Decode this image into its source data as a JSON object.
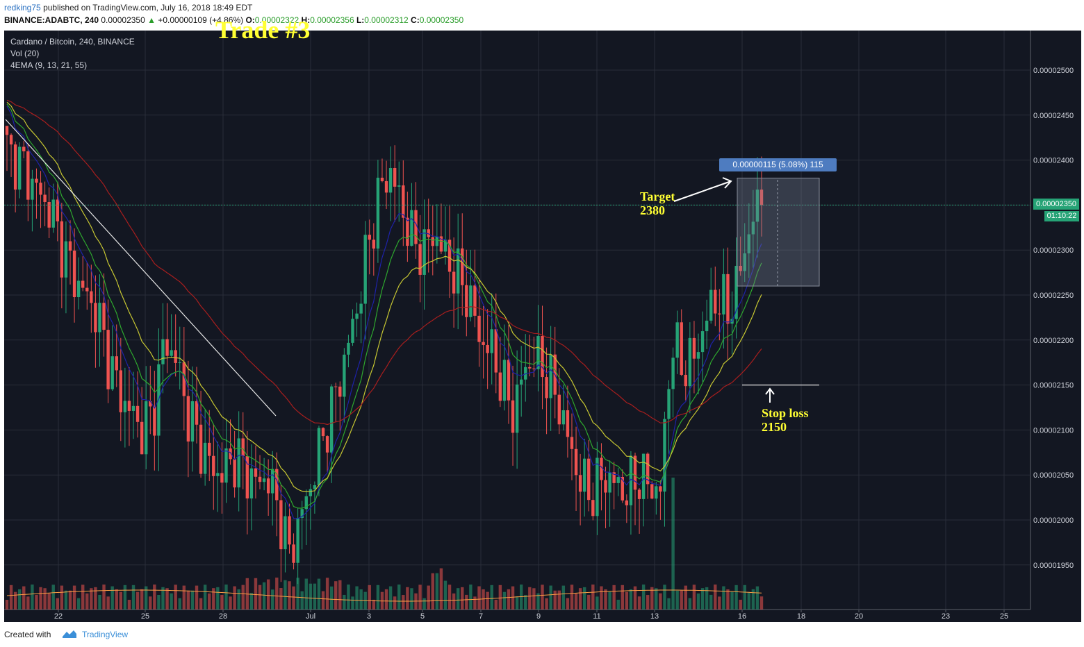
{
  "header": {
    "author": "redking75",
    "published_text": "published on TradingView.com, July 16, 2018 18:49 EDT",
    "symbol_interval": "BINANCE:ADABTC, 240",
    "last_price": "0.00002350",
    "change": "+0.00000109 (+4.86%)",
    "open_label": "O:",
    "open": "0.00002322",
    "high_label": "H:",
    "high": "0.00002356",
    "low_label": "L:",
    "low": "0.00002312",
    "close_label": "C:",
    "close": "0.00002350"
  },
  "overlay_title": "Trade #3",
  "legend": {
    "main": "Cardano / Bitcoin, 240, BINANCE",
    "volume": "Vol (20)",
    "ema": "4EMA (9, 13, 21, 55)"
  },
  "annotations": {
    "target": "Target",
    "target_value": "2380",
    "stop": "Stop loss",
    "stop_value": "2150"
  },
  "measure_label": "0.00000115 (5.08%) 115",
  "current_price_tag": "0.00002350",
  "countdown_tag": "01:10:22",
  "colors": {
    "background": "#131722",
    "grid": "#2a2e39",
    "up": "#26a376",
    "down": "#ef5350",
    "ema9": "#1e22a8",
    "ema13": "#2ea82e",
    "ema21": "#c8c832",
    "ema55": "#a81e1e",
    "annotation": "#ffff33"
  },
  "chart_data": {
    "type": "candlestick",
    "y_ticks": [
      "0.00002500",
      "0.00002450",
      "0.00002400",
      "0.00002350",
      "0.00002300",
      "0.00002250",
      "0.00002200",
      "0.00002150",
      "0.00002100",
      "0.00002050",
      "0.00002000",
      "0.00001950"
    ],
    "ylim": [
      1.91e-05,
      2.53e-05
    ],
    "x_ticks": [
      "22",
      "25",
      "28",
      "Jul",
      "3",
      "5",
      "7",
      "9",
      "11",
      "13",
      "16",
      "18",
      "20",
      "23",
      "25"
    ],
    "series": [
      {
        "name": "price_close_path",
        "values": [
          2410,
          2400,
          2380,
          2360,
          2340,
          2300,
          2270,
          2250,
          2230,
          2180,
          2140,
          2120,
          2100,
          2120,
          2200,
          2180,
          2120,
          2090,
          2060,
          2050,
          2070,
          2060,
          2040,
          2050,
          2020,
          1960,
          2000,
          2040,
          2090,
          2130,
          2180,
          2230,
          2300,
          2360,
          2390,
          2350,
          2310,
          2300,
          2320,
          2290,
          2270,
          2250,
          2200,
          2190,
          2150,
          2120,
          2170,
          2180,
          2160,
          2130,
          2080,
          2040,
          2030,
          2050,
          2040,
          2030,
          2050,
          2040,
          2030,
          2200,
          2170,
          2180,
          2220,
          2250,
          2230,
          2270,
          2330,
          2350
        ]
      }
    ],
    "price_line": 2.35e-05,
    "target": 2.38e-05,
    "stop_loss": 2.15e-05
  }
}
